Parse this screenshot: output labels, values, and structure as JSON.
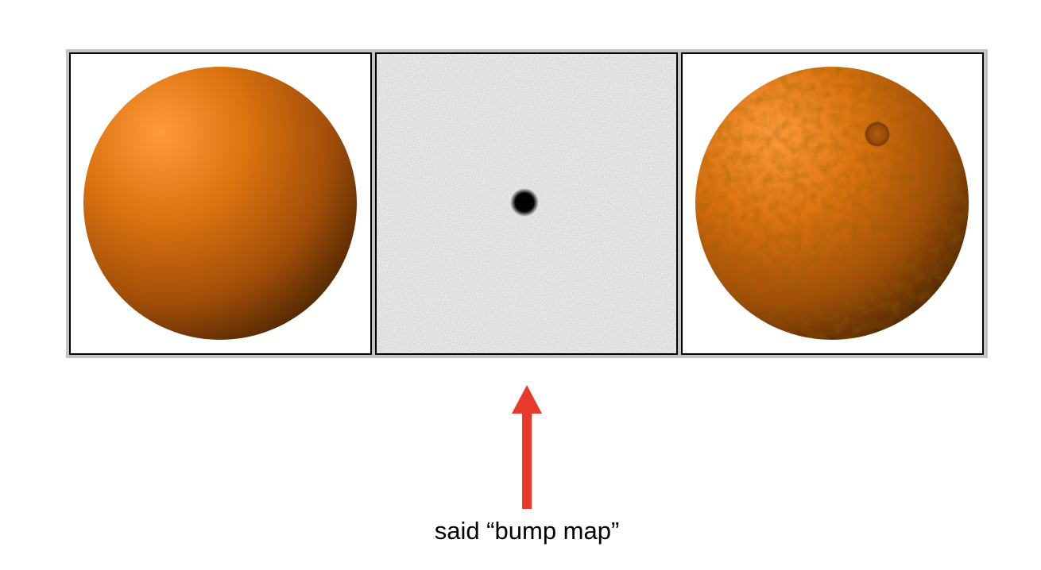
{
  "figure": {
    "caption": "said “bump map”",
    "colors": {
      "sphere_light": "#ff9a3c",
      "sphere_mid": "#d06a12",
      "sphere_dark": "#4a2402",
      "noise_background": "#eaeaea",
      "frame_border": "#c4c4c4",
      "arrow": "#e8392b"
    },
    "panels": [
      {
        "content": "smooth-orange-sphere"
      },
      {
        "content": "grayscale-noise-bump-map"
      },
      {
        "content": "bumpy-orange-sphere"
      }
    ]
  }
}
